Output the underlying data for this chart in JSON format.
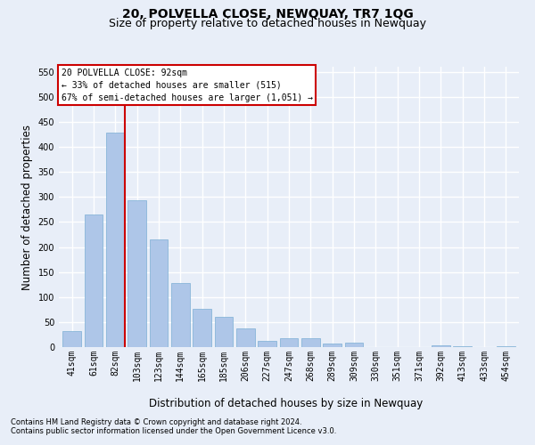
{
  "title": "20, POLVELLA CLOSE, NEWQUAY, TR7 1QG",
  "subtitle": "Size of property relative to detached houses in Newquay",
  "xlabel": "Distribution of detached houses by size in Newquay",
  "ylabel": "Number of detached properties",
  "categories": [
    "41sqm",
    "61sqm",
    "82sqm",
    "103sqm",
    "123sqm",
    "144sqm",
    "165sqm",
    "185sqm",
    "206sqm",
    "227sqm",
    "247sqm",
    "268sqm",
    "289sqm",
    "309sqm",
    "330sqm",
    "351sqm",
    "371sqm",
    "392sqm",
    "413sqm",
    "433sqm",
    "454sqm"
  ],
  "values": [
    32,
    265,
    428,
    293,
    215,
    128,
    77,
    60,
    38,
    12,
    17,
    18,
    7,
    9,
    0,
    0,
    0,
    4,
    2,
    0,
    2
  ],
  "bar_color": "#aec6e8",
  "bar_edge_color": "#7bafd4",
  "highlight_index": 2,
  "highlight_color": "#cc0000",
  "annotation_line1": "20 POLVELLA CLOSE: 92sqm",
  "annotation_line2": "← 33% of detached houses are smaller (515)",
  "annotation_line3": "67% of semi-detached houses are larger (1,051) →",
  "annotation_box_color": "#ffffff",
  "annotation_box_edge": "#cc0000",
  "ylim": [
    0,
    560
  ],
  "yticks": [
    0,
    50,
    100,
    150,
    200,
    250,
    300,
    350,
    400,
    450,
    500,
    550
  ],
  "bg_color": "#e8eef8",
  "grid_color": "#ffffff",
  "title_fontsize": 10,
  "subtitle_fontsize": 9,
  "axis_label_fontsize": 8.5,
  "tick_fontsize": 7,
  "annotation_fontsize": 7,
  "footer_fontsize": 6,
  "footer_line1": "Contains HM Land Registry data © Crown copyright and database right 2024.",
  "footer_line2": "Contains public sector information licensed under the Open Government Licence v3.0."
}
